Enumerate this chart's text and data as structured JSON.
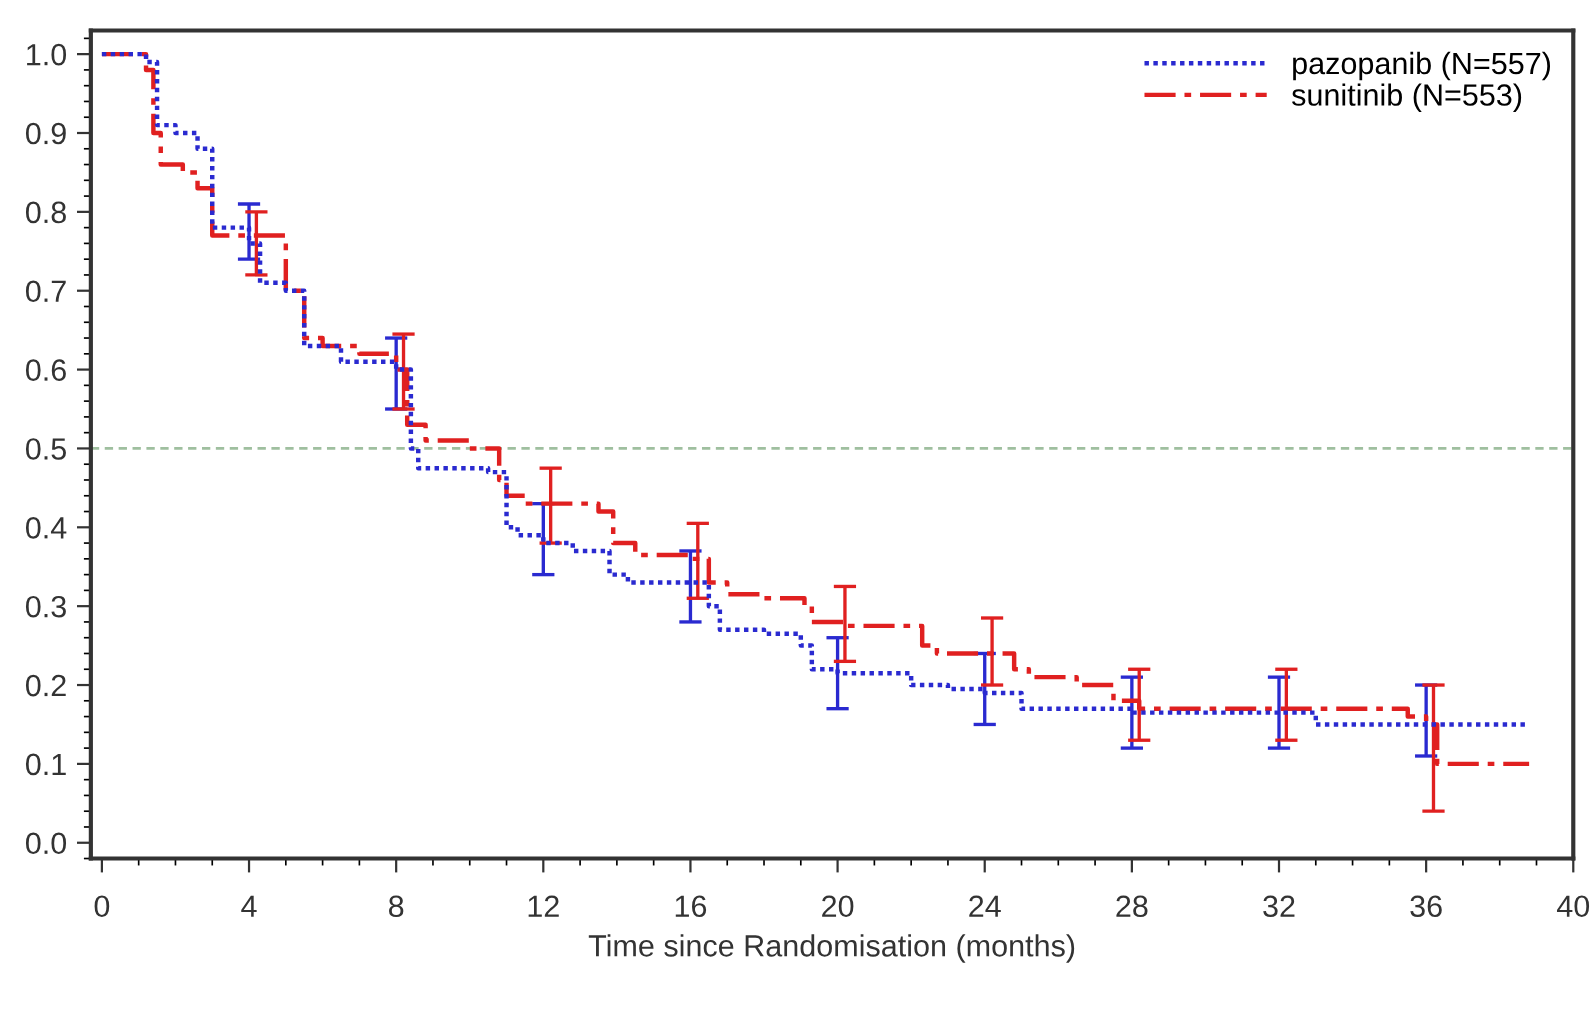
{
  "chart_data": {
    "type": "step",
    "xlabel": "Time since Randomisation (months)",
    "xlim": [
      -0.3,
      40
    ],
    "xticks": [
      0,
      4,
      8,
      12,
      16,
      20,
      24,
      28,
      32,
      36,
      40
    ],
    "ylim": [
      -0.02,
      1.03
    ],
    "yticks": [
      {
        "value": 0,
        "label": "0.0"
      },
      0.1,
      0.2,
      0.3,
      0.4,
      0.5,
      0.6,
      0.7,
      0.8,
      0.9,
      {
        "value": 1,
        "label": "1.0"
      }
    ],
    "grid": false,
    "legend": "top right",
    "ref_lines": [
      {
        "axis": "y",
        "value": 0.5,
        "color": "#9fbf9f",
        "line_style": "dashed"
      }
    ],
    "series": [
      {
        "name": "pazopanib (N=557)",
        "color": "#2a2ad0",
        "line_style": "dotted",
        "x": [
          0,
          0.8,
          1.2,
          1.5,
          2.0,
          2.6,
          3.0,
          4.0,
          4.3,
          5.0,
          5.5,
          6.5,
          8.0,
          8.4,
          8.6,
          10.5,
          11.0,
          11.3,
          12.0,
          12.8,
          13.8,
          14.3,
          16.0,
          16.5,
          16.8,
          18.0,
          19.0,
          19.3,
          20.0,
          22.0,
          23.0,
          24.0,
          25.0,
          28.0,
          32.0,
          33.0,
          36.0,
          38.8
        ],
        "values": [
          1.0,
          1.0,
          0.99,
          0.91,
          0.9,
          0.88,
          0.78,
          0.76,
          0.71,
          0.7,
          0.63,
          0.61,
          0.6,
          0.5,
          0.475,
          0.47,
          0.4,
          0.39,
          0.38,
          0.37,
          0.34,
          0.33,
          0.33,
          0.3,
          0.27,
          0.265,
          0.25,
          0.22,
          0.215,
          0.2,
          0.195,
          0.19,
          0.17,
          0.165,
          0.165,
          0.15,
          0.15,
          0.15
        ],
        "errors": [
          null,
          null,
          null,
          null,
          null,
          null,
          null,
          [
            0.74,
            0.81
          ],
          null,
          null,
          null,
          null,
          [
            0.55,
            0.64
          ],
          null,
          null,
          null,
          null,
          null,
          [
            0.34,
            0.43
          ],
          null,
          null,
          null,
          [
            0.28,
            0.37
          ],
          null,
          null,
          null,
          null,
          null,
          [
            0.17,
            0.26
          ],
          null,
          null,
          [
            0.15,
            0.24
          ],
          null,
          [
            0.12,
            0.21
          ],
          [
            0.12,
            0.21
          ],
          null,
          [
            0.11,
            0.2
          ],
          null
        ]
      },
      {
        "name": "sunitinib (N=553)",
        "color": "#e02020",
        "line_style": "dashed",
        "x": [
          0,
          1.2,
          1.4,
          1.6,
          2.2,
          2.6,
          3.0,
          4.0,
          4.2,
          5.0,
          5.5,
          6.0,
          7.0,
          8.0,
          8.2,
          8.3,
          8.8,
          10.0,
          10.8,
          11.0,
          11.5,
          12.2,
          13.5,
          13.9,
          14.5,
          16.0,
          16.2,
          16.5,
          17.0,
          18.0,
          19.1,
          19.3,
          20.2,
          21.7,
          22.3,
          22.7,
          24.2,
          24.8,
          25.2,
          26.5,
          27.5,
          28.2,
          32.2,
          35.5,
          36.0,
          36.2,
          36.3,
          38.8
        ],
        "values": [
          1.0,
          0.98,
          0.9,
          0.86,
          0.85,
          0.83,
          0.77,
          0.77,
          0.77,
          0.7,
          0.64,
          0.63,
          0.62,
          0.6,
          0.6,
          0.53,
          0.51,
          0.5,
          0.46,
          0.44,
          0.43,
          0.43,
          0.42,
          0.38,
          0.365,
          0.36,
          0.36,
          0.33,
          0.315,
          0.31,
          0.3,
          0.28,
          0.275,
          0.275,
          0.25,
          0.24,
          0.24,
          0.22,
          0.21,
          0.2,
          0.18,
          0.17,
          0.17,
          0.16,
          0.15,
          0.15,
          0.1,
          0.1
        ],
        "errors": [
          null,
          null,
          null,
          null,
          null,
          null,
          null,
          null,
          [
            0.72,
            0.8
          ],
          null,
          null,
          null,
          null,
          null,
          [
            0.55,
            0.645
          ],
          null,
          null,
          null,
          null,
          null,
          null,
          [
            0.38,
            0.475
          ],
          null,
          null,
          null,
          null,
          [
            0.31,
            0.405
          ],
          null,
          null,
          null,
          null,
          null,
          [
            0.23,
            0.325
          ],
          null,
          null,
          null,
          [
            0.2,
            0.285
          ],
          null,
          null,
          null,
          null,
          [
            0.13,
            0.22
          ],
          [
            0.13,
            0.22
          ],
          null,
          null,
          [
            0.04,
            0.2
          ],
          null,
          null
        ]
      }
    ]
  }
}
